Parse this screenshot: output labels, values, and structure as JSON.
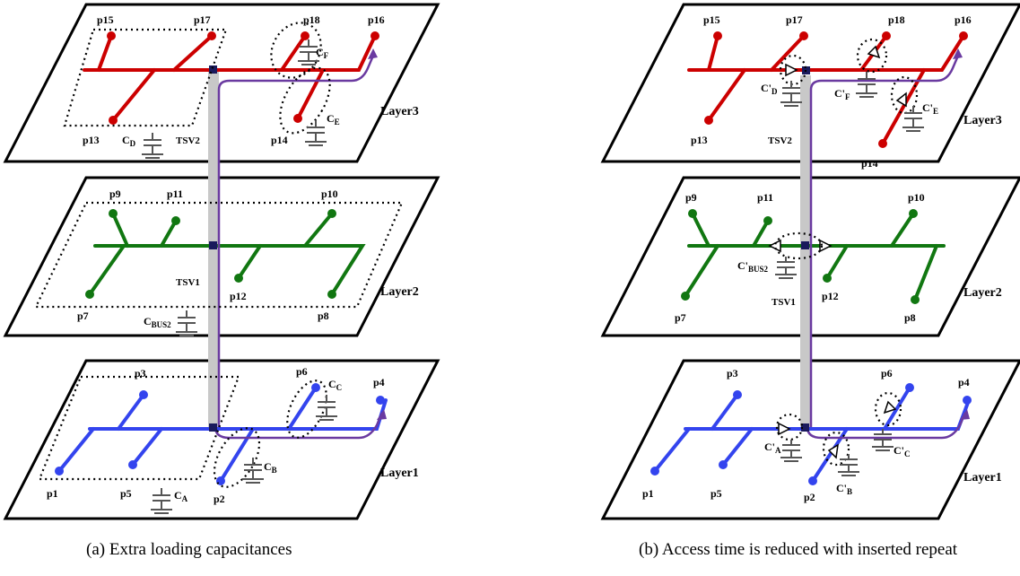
{
  "colors": {
    "layer3": "#cc0000",
    "layer2": "#117711",
    "layer1": "#3344ee",
    "path": "#6a3aa0",
    "tsv": "#c8c8c8",
    "cap": "#555555"
  },
  "panel_a": {
    "caption": "(a) Extra loading capacitances",
    "layers": [
      "Layer3",
      "Layer2",
      "Layer1"
    ],
    "pins": [
      "p15",
      "p17",
      "p18",
      "p16",
      "p13",
      "p14",
      "p9",
      "p11",
      "p10",
      "p7",
      "p8",
      "p12",
      "p3",
      "p6",
      "p4",
      "p1",
      "p5",
      "p2"
    ],
    "tsv": [
      "TSV2",
      "TSV1"
    ],
    "caps": {
      "D": {
        "main": "C",
        "sub": "D"
      },
      "F": {
        "main": "C",
        "sub": "F"
      },
      "E": {
        "main": "C",
        "sub": "E"
      },
      "BUS2": {
        "main": "C",
        "sub": "BUS2"
      },
      "C": {
        "main": "C",
        "sub": "C"
      },
      "B": {
        "main": "C",
        "sub": "B"
      },
      "A": {
        "main": "C",
        "sub": "A"
      }
    }
  },
  "panel_b": {
    "caption": "(b) Access time is reduced with inserted repeat",
    "layers": [
      "Layer3",
      "Layer2",
      "Layer1"
    ],
    "pins": [
      "p15",
      "p17",
      "p18",
      "p16",
      "p13",
      "p14",
      "p9",
      "p11",
      "p10",
      "p7",
      "p8",
      "p12",
      "p3",
      "p6",
      "p4",
      "p1",
      "p5",
      "p2"
    ],
    "tsv": [
      "TSV2",
      "TSV1"
    ],
    "caps": {
      "D": {
        "main": "C'",
        "sub": "D"
      },
      "F": {
        "main": "C'",
        "sub": "F"
      },
      "E": {
        "main": "C'",
        "sub": "E"
      },
      "BUS2": {
        "main": "C'",
        "sub": "BUS2"
      },
      "A": {
        "main": "C'",
        "sub": "A"
      },
      "B": {
        "main": "C'",
        "sub": "B"
      },
      "C": {
        "main": "C'",
        "sub": "C"
      }
    }
  }
}
